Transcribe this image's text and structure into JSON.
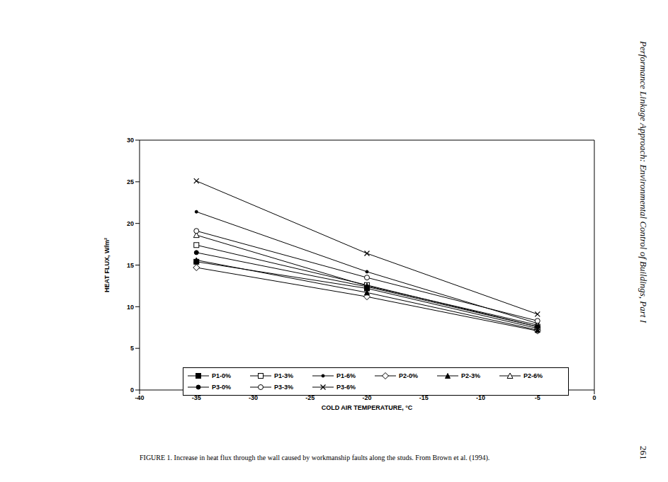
{
  "chart_data": {
    "type": "line",
    "x_label": "COLD AIR TEMPERATURE, °C",
    "y_label": "HEAT FLUX, W/m²",
    "caption": "FIGURE 1. Increase in heat flux through the wall caused by workmanship faults along the studs. From Brown et al. (1994).",
    "running_head": "Performance Linkage Approach: Environmental Control of Buildings, Part I",
    "page_number": "261",
    "x": [
      -35,
      -20,
      -5
    ],
    "series": [
      {
        "name": "P1-0%",
        "color": "#000000",
        "marker": "filled_square",
        "values": [
          15.4,
          12.2,
          7.4
        ]
      },
      {
        "name": "P1-3%",
        "color": "#000000",
        "marker": "open_square",
        "values": [
          17.4,
          12.6,
          7.6
        ]
      },
      {
        "name": "P1-6%",
        "color": "#000000",
        "marker": "dot",
        "values": [
          21.4,
          14.2,
          8.0
        ]
      },
      {
        "name": "P2-0%",
        "color": "#000000",
        "marker": "open_diamond",
        "values": [
          14.7,
          11.2,
          7.1
        ]
      },
      {
        "name": "P2-3%",
        "color": "#000000",
        "marker": "filled_triangle",
        "values": [
          15.6,
          11.7,
          7.2
        ]
      },
      {
        "name": "P2-6%",
        "color": "#000000",
        "marker": "open_triangle",
        "values": [
          18.6,
          12.5,
          7.8
        ]
      },
      {
        "name": "P3-0%",
        "color": "#000000",
        "marker": "filled_circle",
        "values": [
          16.5,
          12.4,
          7.6
        ]
      },
      {
        "name": "P3-3%",
        "color": "#000000",
        "marker": "open_circle",
        "values": [
          19.1,
          13.5,
          8.3
        ]
      },
      {
        "name": "P3-6%",
        "color": "#000000",
        "marker": "cross",
        "values": [
          25.1,
          16.4,
          9.1
        ]
      }
    ],
    "xlim": [
      -40,
      0
    ],
    "xticks": [
      -40,
      -35,
      -30,
      -25,
      -20,
      -15,
      -10,
      -5,
      0
    ],
    "ylim": [
      0,
      30
    ],
    "yticks": [
      0,
      5,
      10,
      15,
      20,
      25,
      30
    ],
    "grid": false,
    "legend": "bottom"
  }
}
